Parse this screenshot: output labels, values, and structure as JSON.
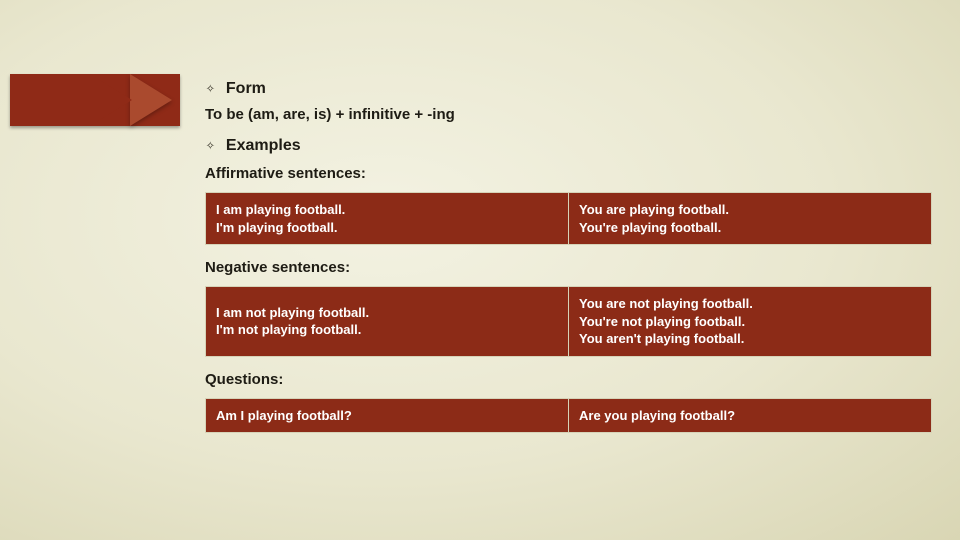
{
  "bullets": {
    "form": "Form",
    "examples": "Examples"
  },
  "form_rule": "To be (am, are, is) + infinitive + -ing",
  "sections": {
    "affirmative": {
      "heading": "Affirmative sentences:",
      "cells": {
        "left": "I am playing football.\nI'm playing football.",
        "right": "You are playing football.\nYou're playing football."
      }
    },
    "negative": {
      "heading": "Negative sentences:",
      "cells": {
        "left": "I am not playing football.\nI'm not playing football.",
        "right": "You are not playing football.\nYou're not playing football.\nYou aren't playing football."
      }
    },
    "questions": {
      "heading": "Questions:",
      "cells": {
        "left": "Am I playing football?",
        "right": "Are you playing football?"
      }
    }
  },
  "colors": {
    "table_bg": "#8c2b17",
    "table_text": "#ffffff",
    "deco_dark": "#8f2a17",
    "deco_light": "#aa4a2e"
  }
}
